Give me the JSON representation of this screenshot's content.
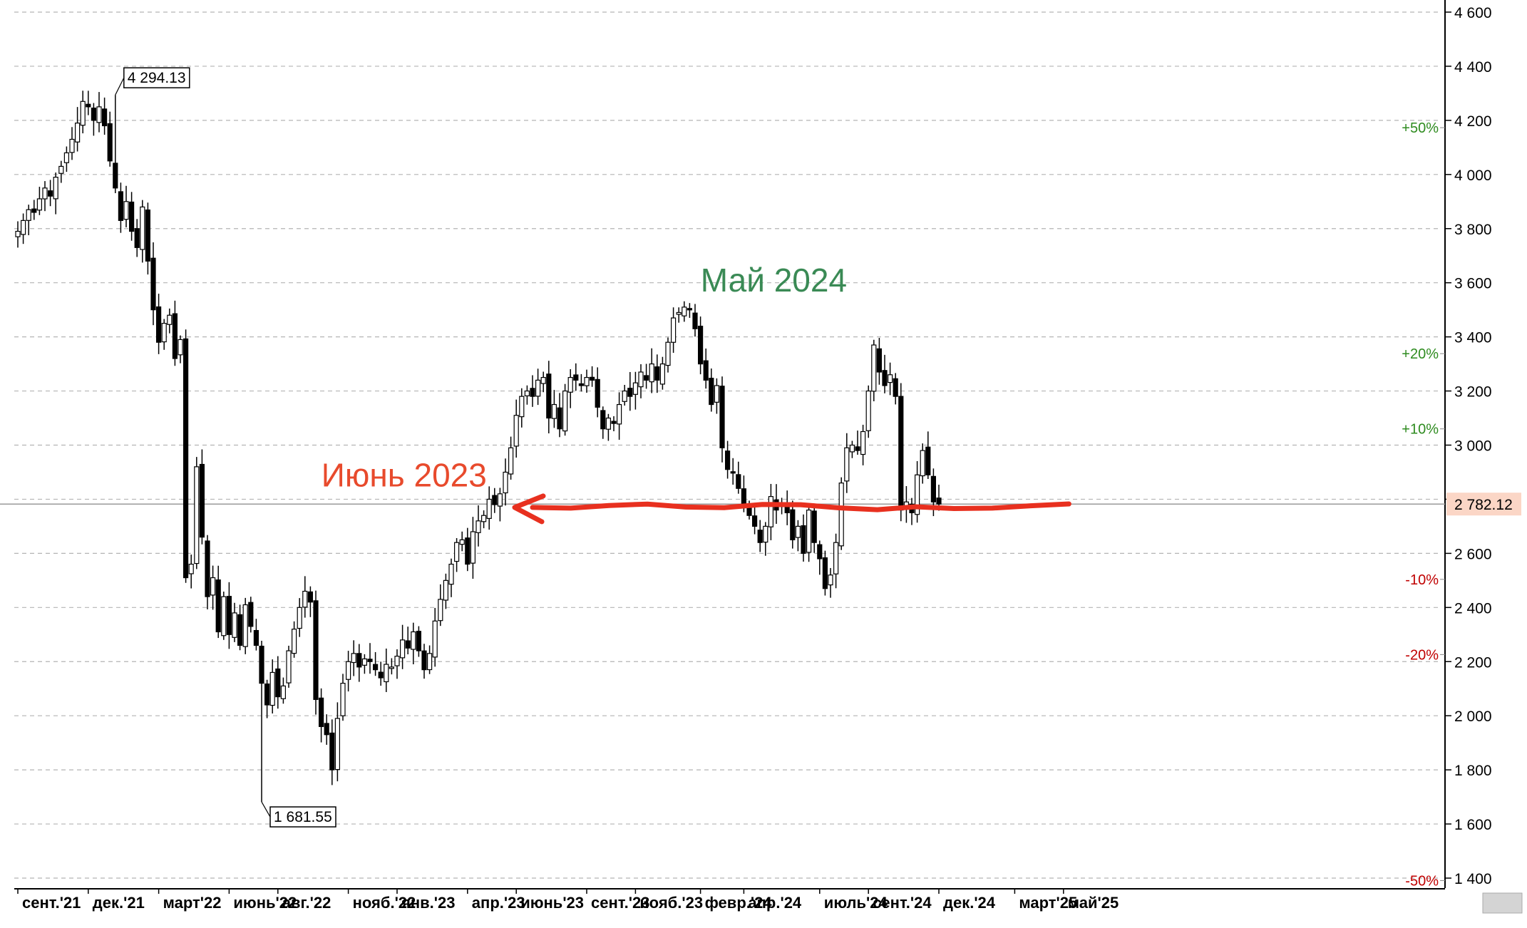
{
  "chart_data": {
    "type": "candlestick",
    "y_axis": {
      "ylim": [
        1370,
        4620
      ],
      "ticks": [
        "4 600",
        "4 400",
        "4 200",
        "4 000",
        "3 800",
        "3 600",
        "3 400",
        "3 200",
        "3 000",
        "2 800",
        "2 600",
        "2 400",
        "2 200",
        "2 000",
        "1 800",
        "1 600",
        "1 400"
      ],
      "tick_values": [
        4600,
        4400,
        4200,
        4000,
        3800,
        3600,
        3400,
        3200,
        3000,
        2800,
        2600,
        2400,
        2200,
        2000,
        1800,
        1600,
        1400
      ],
      "grid": true,
      "position": "right"
    },
    "x_axis": {
      "ticks": [
        "сент.'21",
        "дек.'21",
        "март'22",
        "июнь'22",
        "авг.'22",
        "нояб.'22",
        "янв.'23",
        "апр.'23",
        "июнь'23",
        "сент.'23",
        "нояб.'23",
        "февр.'24",
        "апр.'24",
        "июль'24",
        "сент.'24",
        "дек.'24",
        "март'25",
        "май'25"
      ],
      "tick_week_index": [
        0,
        13,
        26,
        39,
        48,
        61,
        70,
        83,
        92,
        105,
        114,
        126,
        134,
        148,
        157,
        170,
        184,
        193
      ]
    },
    "percent_levels": [
      {
        "label": "+50%",
        "value": 4173,
        "color": "#2e8b1f"
      },
      {
        "label": "+20%",
        "value": 3338,
        "color": "#2e8b1f"
      },
      {
        "label": "+10%",
        "value": 3060,
        "color": "#2e8b1f"
      },
      {
        "label": "-10%",
        "value": 2504,
        "color": "#c00000"
      },
      {
        "label": "-20%",
        "value": 2226,
        "color": "#c00000"
      },
      {
        "label": "-50%",
        "value": 1391,
        "color": "#c00000"
      }
    ],
    "current_price": {
      "label": "2 782.12",
      "value": 2782.12
    },
    "max_label": {
      "label": "4 294.13",
      "value": 4294.13,
      "week": 18
    },
    "min_label": {
      "label": "1 681.55",
      "value": 1681.55,
      "week": 45
    },
    "annotations": [
      {
        "text": "Июнь 2023",
        "color": "#e84a2c",
        "value": 2890,
        "week": 58
      },
      {
        "text": "Май 2024",
        "color": "#3a8a55",
        "value": 3610,
        "week": 128
      }
    ],
    "support_line": {
      "value": 2775,
      "color": "#e8301f",
      "from_week": 95,
      "to_week": 194
    },
    "closes": [
      3790,
      3830,
      3870,
      3860,
      3910,
      3950,
      3920,
      3990,
      4030,
      4080,
      4130,
      4190,
      4270,
      4250,
      4200,
      4250,
      4180,
      4050,
      3950,
      3830,
      3900,
      3790,
      3730,
      3880,
      3680,
      3500,
      3380,
      3450,
      3480,
      3320,
      3390,
      2510,
      2560,
      2920,
      2660,
      2440,
      2510,
      2310,
      2440,
      2300,
      2380,
      2260,
      2410,
      2330,
      2260,
      2120,
      2040,
      2160,
      2070,
      2110,
      2240,
      2320,
      2400,
      2460,
      2420,
      2060,
      1960,
      1930,
      1800,
      1990,
      2120,
      2200,
      2230,
      2180,
      2210,
      2200,
      2170,
      2140,
      2190,
      2180,
      2220,
      2280,
      2250,
      2310,
      2240,
      2170,
      2230,
      2350,
      2430,
      2500,
      2560,
      2640,
      2650,
      2560,
      2680,
      2720,
      2740,
      2800,
      2780,
      2820,
      2900,
      2990,
      3110,
      3180,
      3200,
      3180,
      3240,
      3250,
      3100,
      3150,
      3060,
      3200,
      3250,
      3240,
      3220,
      3250,
      3240,
      3140,
      3060,
      3100,
      3080,
      3150,
      3200,
      3180,
      3230,
      3270,
      3240,
      3300,
      3240,
      3300,
      3380,
      3470,
      3490,
      3510,
      3500,
      3430,
      3300,
      3240,
      3150,
      3220,
      2990,
      2910,
      2900,
      2840,
      2770,
      2740,
      2700,
      2640,
      2700,
      2810,
      2760,
      2780,
      2750,
      2650,
      2700,
      2600,
      2760,
      2640,
      2580,
      2470,
      2520,
      2640,
      2860,
      2990,
      3000,
      2980,
      3050,
      3200,
      3370,
      3270,
      3220,
      3260,
      3180,
      2760,
      2790,
      2750,
      2890,
      2980,
      2890,
      2790,
      2782.12
    ],
    "series": [
      {
        "type": "weekly OHLC candles",
        "values_key": "closes"
      }
    ]
  }
}
